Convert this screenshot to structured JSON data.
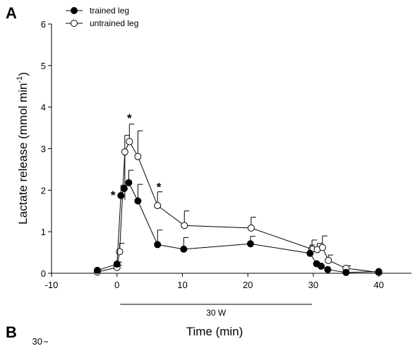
{
  "panel_a_letter": "A",
  "panel_b_letter": "B",
  "panel_b_top_tick": "30",
  "chart_data": {
    "type": "line",
    "title": "",
    "xlabel": "Time (min)",
    "ylabel": "Lactate release (mmol min",
    "ylabel_sup": "-1",
    "ylabel_close": ")",
    "xlim": [
      -10,
      45
    ],
    "ylim": [
      0,
      6
    ],
    "xticks": [
      -10,
      0,
      10,
      20,
      30,
      40
    ],
    "yticks": [
      0,
      1,
      2,
      3,
      4,
      5,
      6
    ],
    "grid": false,
    "legend_position": "top-left",
    "series": [
      {
        "name": "trained leg",
        "marker": "filled-circle",
        "color": "#000000",
        "x": [
          -3,
          0,
          0.6,
          1.1,
          1.8,
          3.2,
          6.2,
          10.2,
          20.4,
          29.5,
          30.5,
          31.2,
          32.2,
          35,
          40
        ],
        "y": [
          0.07,
          0.22,
          1.87,
          2.04,
          2.18,
          1.74,
          0.69,
          0.58,
          0.71,
          0.48,
          0.23,
          0.17,
          0.09,
          0.02,
          0.04
        ],
        "err": [
          0,
          0.05,
          0.25,
          0,
          0.3,
          0.4,
          0.35,
          0.28,
          0.18,
          0.2,
          0,
          0,
          0,
          0,
          0
        ]
      },
      {
        "name": "untrained leg",
        "marker": "open-circle",
        "color": "#000000",
        "x": [
          -3,
          0,
          0.4,
          1.2,
          1.9,
          3.2,
          6.2,
          10.3,
          20.5,
          29.8,
          30.6,
          31.4,
          32.3,
          35,
          40
        ],
        "y": [
          0.03,
          0.14,
          0.52,
          2.92,
          3.17,
          2.81,
          1.63,
          1.15,
          1.09,
          0.58,
          0.57,
          0.62,
          0.31,
          0.12,
          0.02
        ],
        "err": [
          0,
          0.05,
          0.2,
          0.4,
          0.42,
          0.62,
          0.33,
          0.35,
          0.26,
          0.22,
          0.15,
          0.28,
          0.13,
          0.06,
          0
        ],
        "err_down": [
          0,
          0,
          0,
          1.15,
          0,
          0,
          0,
          0,
          0,
          0,
          0,
          0,
          0,
          0,
          0
        ]
      }
    ],
    "annotations": [
      {
        "text": "*",
        "x": -0.6,
        "y": 1.92
      },
      {
        "text": "*",
        "x": 1.9,
        "y": 3.77
      },
      {
        "text": "*",
        "x": 6.4,
        "y": 2.12
      }
    ],
    "exercise_bar": {
      "label": "30 W",
      "x_start": 0.5,
      "x_end": 29.8
    }
  }
}
